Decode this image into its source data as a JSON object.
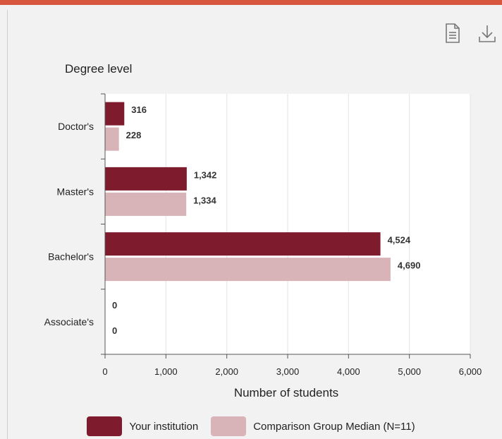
{
  "toolbar": {
    "items": [
      {
        "name": "document-icon",
        "label": "View data table"
      },
      {
        "name": "download-icon",
        "label": "Download"
      }
    ]
  },
  "colors": {
    "accent": "#d6573d",
    "your_institution": "#7e1b2c",
    "comparison": "#d8b3b8",
    "plot_bg": "#ffffff",
    "grid": "#e3e3ea"
  },
  "chart_data": {
    "type": "bar",
    "orientation": "horizontal",
    "title": "Degree level",
    "xlabel": "Number of students",
    "ylabel": "",
    "categories": [
      "Doctor's",
      "Master's",
      "Bachelor's",
      "Associate's"
    ],
    "series": [
      {
        "name": "Your institution",
        "values": [
          316,
          1342,
          4524,
          0
        ],
        "labels": [
          "316",
          "1,342",
          "4,524",
          "0"
        ]
      },
      {
        "name": "Comparison Group Median (N=11)",
        "values": [
          228,
          1334,
          4690,
          0
        ],
        "labels": [
          "228",
          "1,334",
          "4,690",
          "0"
        ]
      }
    ],
    "xlim": [
      0,
      6000
    ],
    "xticks": [
      0,
      1000,
      2000,
      3000,
      4000,
      5000,
      6000
    ],
    "xtick_labels": [
      "0",
      "1,000",
      "2,000",
      "3,000",
      "4,000",
      "5,000",
      "6,000"
    ],
    "grid": true,
    "legend_position": "bottom"
  }
}
